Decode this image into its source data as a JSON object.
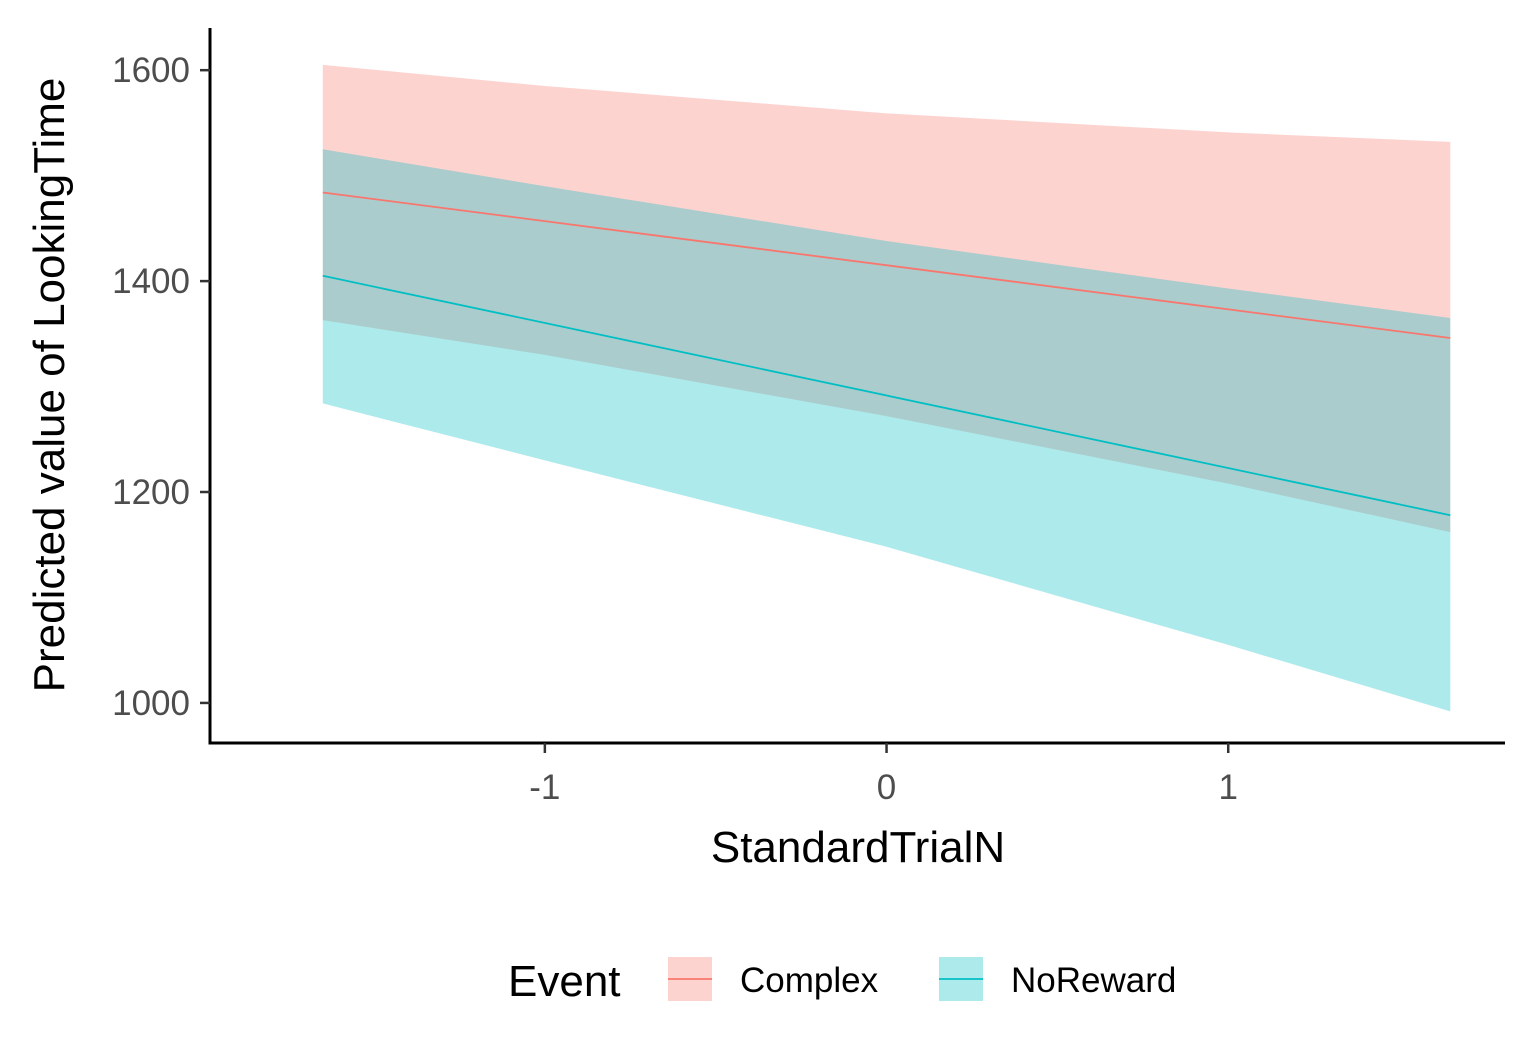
{
  "chart_data": {
    "type": "line",
    "xlabel": "StandardTrialN",
    "ylabel": "Predicted value of LookingTime",
    "xlim": [
      -1.98,
      1.81
    ],
    "ylim": [
      962,
      1640
    ],
    "x_ticks": [
      -1,
      0,
      1
    ],
    "x_tick_labels": [
      "-1",
      "0",
      "1"
    ],
    "y_ticks": [
      1000,
      1200,
      1400,
      1600
    ],
    "y_tick_labels": [
      "1000",
      "1200",
      "1400",
      "1600"
    ],
    "grid": false,
    "legend": {
      "title": "Event",
      "placement": "bottom"
    },
    "series": [
      {
        "name": "Complex",
        "color": "#F8766D",
        "x": [
          -1.65,
          1.65
        ],
        "y": [
          1484,
          1346
        ],
        "ribbon": {
          "x": [
            -1.65,
            -1.0,
            0.0,
            1.0,
            1.65
          ],
          "lower": [
            1363,
            1330,
            1272,
            1208,
            1162
          ],
          "upper": [
            1605,
            1585,
            1559,
            1541,
            1532
          ]
        }
      },
      {
        "name": "NoReward",
        "color": "#00BFC4",
        "x": [
          -1.65,
          1.65
        ],
        "y": [
          1405,
          1178
        ],
        "ribbon": {
          "x": [
            -1.65,
            -1.0,
            0.0,
            1.0,
            1.65
          ],
          "lower": [
            1284,
            1230,
            1148,
            1055,
            992
          ],
          "upper": [
            1525,
            1490,
            1438,
            1393,
            1365
          ]
        }
      }
    ]
  }
}
